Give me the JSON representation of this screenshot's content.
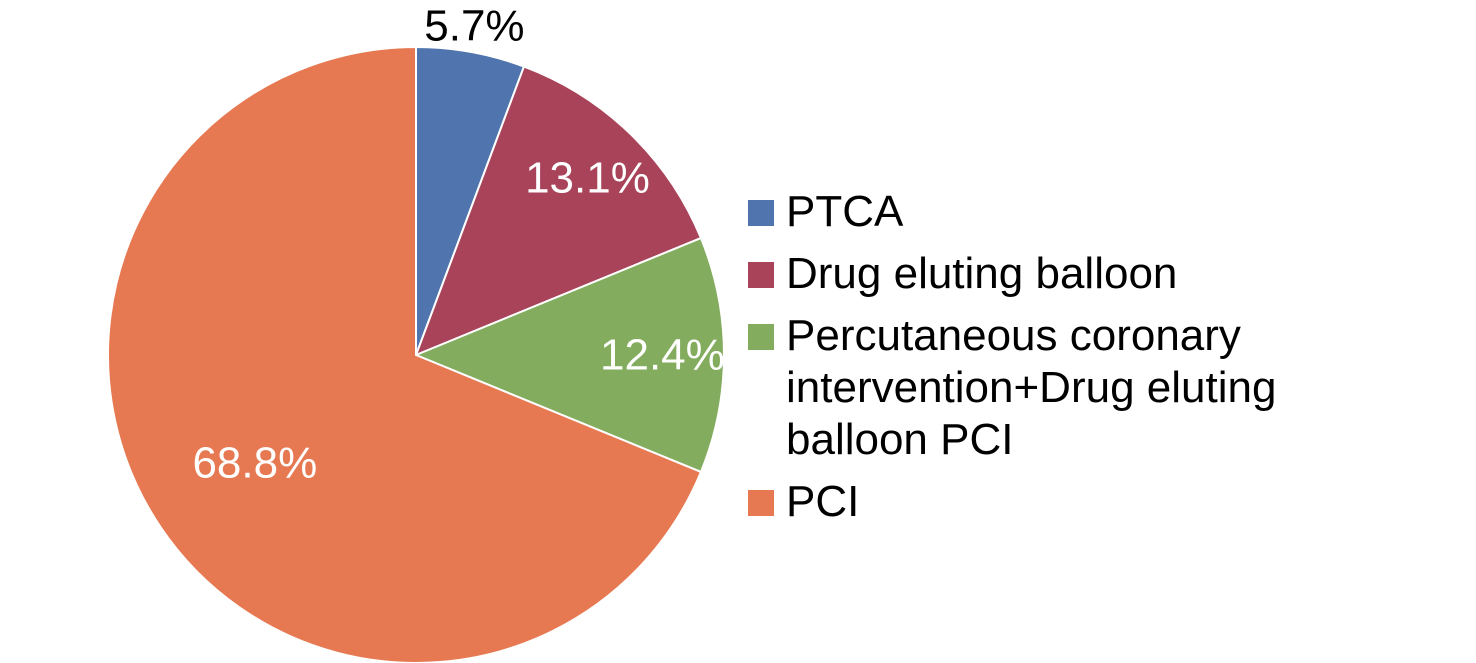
{
  "chart_data": {
    "type": "pie",
    "start_angle_deg": 0,
    "direction": "clockwise",
    "slices": [
      {
        "name": "PTCA",
        "value": 5.7,
        "label": "5.7%",
        "color": "#4F74AE",
        "label_color": "#000000",
        "label_position": "outside"
      },
      {
        "name": "Drug eluting balloon",
        "value": 13.1,
        "label": "13.1%",
        "color": "#A8435A",
        "label_color": "#FFFFFF",
        "label_position": "inside"
      },
      {
        "name": "Percutaneous coronary intervention+Drug eluting balloon PCI",
        "value": 12.4,
        "label": "12.4%",
        "color": "#84AC5E",
        "label_color": "#FFFFFF",
        "label_position": "inside"
      },
      {
        "name": "PCI",
        "value": 68.8,
        "label": "68.8%",
        "color": "#E77952",
        "label_color": "#FFFFFF",
        "label_position": "inside"
      }
    ],
    "legend": {
      "placement": "right",
      "entries": [
        {
          "label": "PTCA",
          "color": "#4F74AE"
        },
        {
          "label": "Drug eluting balloon",
          "color": "#A8435A"
        },
        {
          "label": "Percutaneous coronary intervention+Drug eluting balloon PCI",
          "color": "#84AC5E"
        },
        {
          "label": "PCI",
          "color": "#E77952"
        }
      ]
    }
  }
}
